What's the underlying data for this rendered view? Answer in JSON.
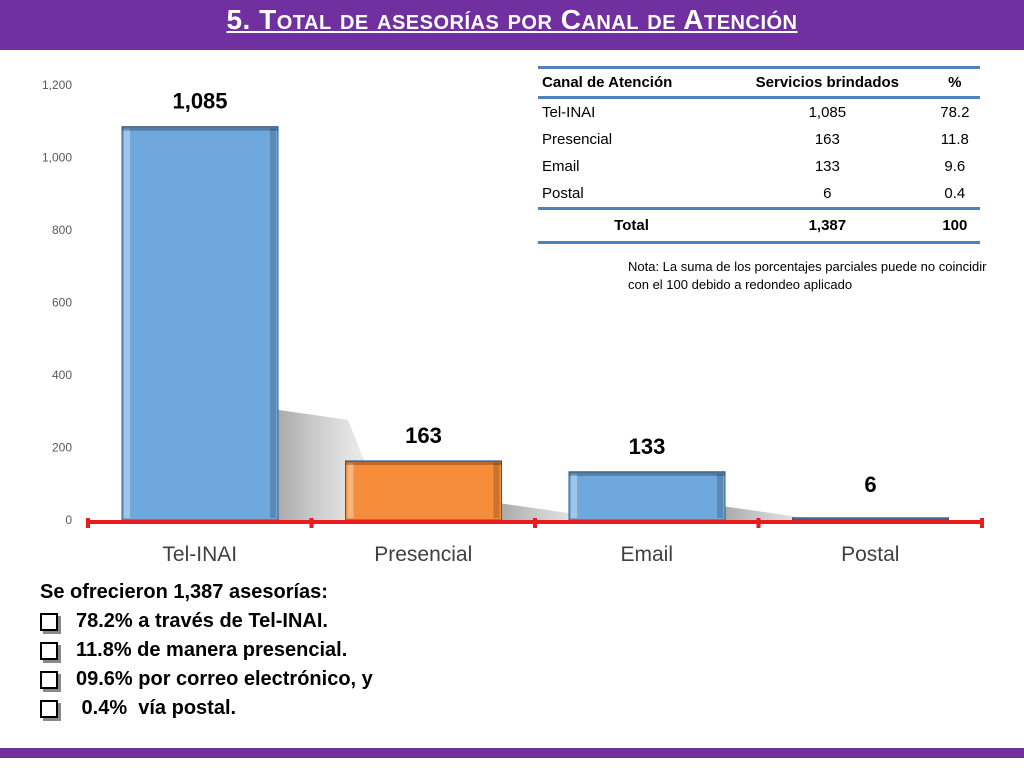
{
  "title": "5. Total de asesorías por Canal de Atención",
  "colors": {
    "title_bar": "#7030a0",
    "bar_blue": "#6fa8dc",
    "bar_orange": "#f68d3a",
    "axis_red": "#e81c1c",
    "table_rule": "#4f81bd"
  },
  "chart_data": {
    "type": "bar",
    "categories": [
      "Tel-INAI",
      "Presencial",
      "Email",
      "Postal"
    ],
    "values": [
      1085,
      163,
      133,
      6
    ],
    "data_labels": [
      "1,085",
      "163",
      "133",
      "6"
    ],
    "bar_colors": [
      "#6fa8dc",
      "#f68d3a",
      "#6fa8dc",
      "#6fa8dc"
    ],
    "ylim": [
      0,
      1200
    ],
    "yticks": [
      0,
      200,
      400,
      600,
      800,
      1000,
      1200
    ],
    "ytick_labels": [
      "0",
      "200",
      "400",
      "600",
      "800",
      "1,000",
      "1,200"
    ],
    "grid": false,
    "xlabel": "",
    "ylabel": ""
  },
  "table": {
    "headers": [
      "Canal de Atención",
      "Servicios brindados",
      "%"
    ],
    "rows": [
      [
        "Tel-INAI",
        "1,085",
        "78.2"
      ],
      [
        "Presencial",
        "163",
        "11.8"
      ],
      [
        "Email",
        "133",
        "9.6"
      ],
      [
        "Postal",
        "6",
        "0.4"
      ]
    ],
    "total": [
      "Total",
      "1,387",
      "100"
    ]
  },
  "note": "Nota: La suma de los porcentajes parciales puede no coincidir con el 100 debido a redondeo aplicado",
  "summary": {
    "heading": "Se ofrecieron 1,387 asesorías:",
    "bullets": [
      "78.2% a través de Tel-INAI.",
      "11.8% de manera presencial.",
      "09.6% por correo electrónico, y",
      " 0.4%  vía postal."
    ]
  }
}
